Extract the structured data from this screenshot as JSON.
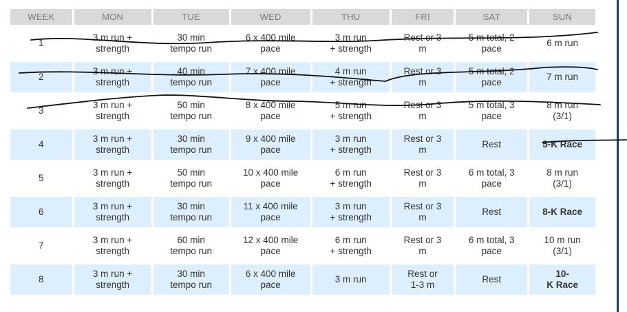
{
  "schedule": {
    "headers": [
      "WEEK",
      "MON",
      "TUE",
      "WED",
      "THU",
      "FRI",
      "SAT",
      "SUN"
    ],
    "rows": [
      {
        "week": "1",
        "mon": "3 m run +\nstrength",
        "tue": "30 min\ntempo run",
        "wed": "6 x 400 mile\npace",
        "thu": "3 m run\n+ strength",
        "fri": "Rest or 3\nm",
        "sat": "5 m total, 2\npace",
        "sun": "6 m run"
      },
      {
        "week": "2",
        "mon": "3 m run +\nstrength",
        "tue": "40 min\ntempo run",
        "wed": "7 x 400 mile\npace",
        "thu": "4 m run\n+ strength",
        "fri": "Rest or 3\nm",
        "sat": "5 m total, 2\npace",
        "sun": "7 m run"
      },
      {
        "week": "3",
        "mon": "3 m run +\nstrength",
        "tue": "50 min\ntempo run",
        "wed": "8 x 400 mile\npace",
        "thu": "5 m run\n+ strength",
        "fri": "Rest or 3\nm",
        "sat": "5 m total, 3\npace",
        "sun": "8 m run\n(3/1)"
      },
      {
        "week": "4",
        "mon": "3 m run +\nstrength",
        "tue": "30 min\ntempo run",
        "wed": "9 x 400 mile\npace",
        "thu": "3 m run\n+ strength",
        "fri": "Rest or 3\nm",
        "sat": "Rest",
        "sun": "5-K Race"
      },
      {
        "week": "5",
        "mon": "3 m run +\nstrength",
        "tue": "50 min\ntempo run",
        "wed": "10 x 400 mile\npace",
        "thu": "6 m run\n+ strength",
        "fri": "Rest or 3\nm",
        "sat": "6 m total, 3\npace",
        "sun": "8 m run\n(3/1)"
      },
      {
        "week": "6",
        "mon": "3 m run +\nstrength",
        "tue": "30 min\ntempo run",
        "wed": "11 x 400 mile\npace",
        "thu": "3 m run\n+ strength",
        "fri": "Rest or 3\nm",
        "sat": "Rest",
        "sun": "8-K Race"
      },
      {
        "week": "7",
        "mon": "3 m run +\nstrength",
        "tue": "60 min\ntempo run",
        "wed": "12 x 400 mile\npace",
        "thu": "6 m run\n+ strength",
        "fri": "Rest or 3\nm",
        "sat": "6 m total, 3\npace",
        "sun": "10 m run\n(3/1)"
      },
      {
        "week": "8",
        "mon": "3 m run +\nstrength",
        "tue": "30 min\ntempo run",
        "wed": "6 x 400 mile\npace",
        "thu": "3 m run",
        "fri": "Rest or\n1-3 m",
        "sat": "Rest",
        "sun": "10-\nK Race"
      }
    ],
    "race_weeks": [
      "4",
      "6",
      "8"
    ]
  },
  "colors": {
    "header_bg": "#d9d9d9",
    "header_text": "#7a7a7a",
    "row_shade": "#ddeefc",
    "cell_text": "#333333",
    "side_border": "#1f3f66",
    "strike_ink": "#111111"
  }
}
